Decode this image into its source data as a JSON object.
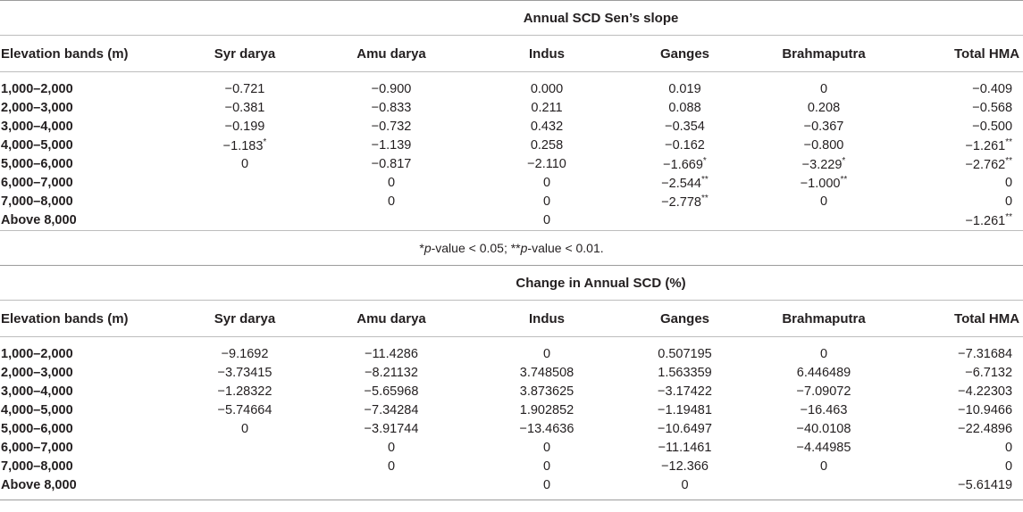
{
  "table1": {
    "title": "Annual SCD Sen’s slope",
    "headers": [
      "Elevation bands (m)",
      "Syr darya",
      "Amu darya",
      "Indus",
      "Ganges",
      "Brahmaputra",
      "Total HMA"
    ],
    "rows": [
      [
        "1,000–2,000",
        "−0.721",
        "−0.900",
        "0.000",
        "0.019",
        "0",
        "−0.409"
      ],
      [
        "2,000–3,000",
        "−0.381",
        "−0.833",
        "0.211",
        "0.088",
        "0.208",
        "−0.568"
      ],
      [
        "3,000–4,000",
        "−0.199",
        "−0.732",
        "0.432",
        "−0.354",
        "−0.367",
        "−0.500"
      ],
      [
        "4,000–5,000",
        "−1.183*",
        "−1.139",
        "0.258",
        "−0.162",
        "−0.800",
        "−1.261**"
      ],
      [
        "5,000–6,000",
        "0",
        "−0.817",
        "−2.110",
        "−1.669*",
        "−3.229*",
        "−2.762**"
      ],
      [
        "6,000–7,000",
        "",
        "0",
        "0",
        "−2.544**",
        "−1.000**",
        "0"
      ],
      [
        "7,000–8,000",
        "",
        "0",
        "0",
        "−2.778**",
        "0",
        "0"
      ],
      [
        "Above 8,000",
        "",
        "",
        "0",
        "",
        "",
        "−1.261**"
      ]
    ],
    "note_a": "*",
    "note_b": "p",
    "note_c": "-value < 0.05; **",
    "note_d": "p",
    "note_e": "-value < 0.01."
  },
  "table2": {
    "title": "Change in Annual SCD (%)",
    "headers": [
      "Elevation bands (m)",
      "Syr darya",
      "Amu darya",
      "Indus",
      "Ganges",
      "Brahmaputra",
      "Total HMA"
    ],
    "rows": [
      [
        "1,000–2,000",
        "−9.1692",
        "−11.4286",
        "0",
        "0.507195",
        "0",
        "−7.31684"
      ],
      [
        "2,000–3,000",
        "−3.73415",
        "−8.21132",
        "3.748508",
        "1.563359",
        "6.446489",
        "−6.7132"
      ],
      [
        "3,000–4,000",
        "−1.28322",
        "−5.65968",
        "3.873625",
        "−3.17422",
        "−7.09072",
        "−4.22303"
      ],
      [
        "4,000–5,000",
        "−5.74664",
        "−7.34284",
        "1.902852",
        "−1.19481",
        "−16.463",
        "−10.9466"
      ],
      [
        "5,000–6,000",
        "0",
        "−3.91744",
        "−13.4636",
        "−10.6497",
        "−40.0108",
        "−22.4896"
      ],
      [
        "6,000–7,000",
        "",
        "0",
        "0",
        "−11.1461",
        "−4.44985",
        "0"
      ],
      [
        "7,000–8,000",
        "",
        "0",
        "0",
        "−12.366",
        "0",
        "0"
      ],
      [
        "Above 8,000",
        "",
        "",
        "0",
        "0",
        "",
        "−5.61419"
      ]
    ]
  }
}
